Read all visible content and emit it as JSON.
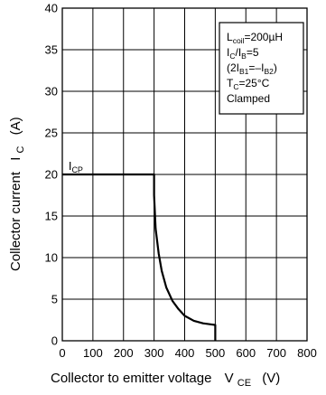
{
  "chart_data": {
    "type": "line",
    "xlabel": "Collector to emitter voltage",
    "xlabel_symbol": "V",
    "xlabel_symbol_sub": "CE",
    "xlabel_unit": "(V)",
    "ylabel": "Collector current",
    "ylabel_symbol": "I",
    "ylabel_symbol_sub": "C",
    "ylabel_unit": "(A)",
    "xlim": [
      0,
      800
    ],
    "ylim": [
      0,
      40
    ],
    "xticks": [
      0,
      100,
      200,
      300,
      400,
      500,
      600,
      700,
      800
    ],
    "yticks": [
      0,
      5,
      10,
      15,
      20,
      25,
      30,
      35,
      40
    ],
    "grid": true,
    "series": [
      {
        "points": [
          [
            0,
            20
          ],
          [
            300,
            20
          ],
          [
            300,
            17.5
          ],
          [
            305,
            13.5
          ],
          [
            315,
            10.5
          ],
          [
            325,
            8.4
          ],
          [
            340,
            6.4
          ],
          [
            360,
            4.8
          ],
          [
            380,
            3.8
          ],
          [
            400,
            3.0
          ],
          [
            430,
            2.4
          ],
          [
            460,
            2.1
          ],
          [
            490,
            1.95
          ],
          [
            500,
            1.9
          ],
          [
            500,
            0
          ]
        ]
      }
    ],
    "annotations": [
      {
        "text": "I",
        "sub": "CP",
        "x": 150,
        "y": 20
      }
    ],
    "legend_box": {
      "placement": "top-right",
      "lines": [
        {
          "text": "L",
          "sub": "coil",
          "after": "=200µH"
        },
        {
          "text": "I",
          "sub": "C",
          "after": "/I",
          "sub2": "B",
          "after2": "=5"
        },
        {
          "text": "(2I",
          "sub": "B1",
          "after": "=–I",
          "sub2": "B2",
          "after2": ")"
        },
        {
          "text": "T",
          "sub": "C",
          "after": "=25°C"
        },
        {
          "text": "Clamped"
        }
      ]
    }
  }
}
